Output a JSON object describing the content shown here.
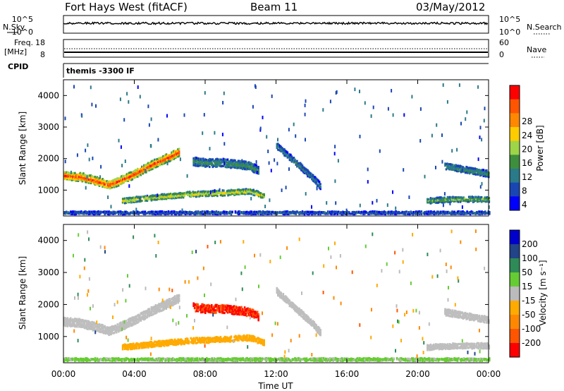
{
  "header": {
    "station": "Fort Hays West (fitACF)",
    "beam": "Beam 11",
    "date": "03/May/2012"
  },
  "noise_panel": {
    "left_label": "N.Sky",
    "left_ticks": [
      "10^5",
      "10^0"
    ],
    "right_label": "N.Search",
    "right_ticks": [
      "10^5",
      "10^0"
    ]
  },
  "freq_panel": {
    "left_label_1": "Freq.",
    "left_label_2": "[MHz]",
    "left_ticks": [
      "18",
      "8"
    ],
    "right_label": "Nave",
    "right_ticks": [
      "60",
      "0"
    ]
  },
  "cpid": {
    "label": "CPID",
    "value": "themis -3300 IF"
  },
  "colors": {
    "power_scale": [
      "#0000ff",
      "#1a46b4",
      "#2a7a8a",
      "#3d8f3d",
      "#9ed447",
      "#ffcc00",
      "#ff8800",
      "#ff5500",
      "#ff0000"
    ],
    "velocity_scale": [
      "#0000cc",
      "#224488",
      "#2e8b57",
      "#66cc33",
      "#bbbbbb",
      "#ffaa00",
      "#ff8800",
      "#ff5500",
      "#ff0000"
    ],
    "ground_scatter": "#bebebe"
  },
  "chart_data": [
    {
      "type": "heatmap",
      "title": "",
      "ylabel": "Slant Range [km]",
      "ylim": [
        180,
        4500
      ],
      "yticks": [
        "1000",
        "2000",
        "3000",
        "4000"
      ],
      "xlim": [
        0,
        24
      ],
      "colorbar_label": "Power [dB]",
      "colorbar_ticks": [
        "4",
        "8",
        "12",
        "16",
        "20",
        "24",
        "28"
      ],
      "colorbar_range": [
        0,
        30
      ],
      "features": [
        {
          "name": "main band",
          "t": [
            0,
            1,
            2,
            2.5,
            3,
            4,
            5,
            6,
            6.5
          ],
          "range": [
            1450,
            1400,
            1250,
            1150,
            1250,
            1500,
            1800,
            2050,
            2200
          ],
          "width": 260,
          "value": 24
        },
        {
          "name": "low arc",
          "t": [
            3.3,
            5,
            7,
            9,
            10.5,
            11.3
          ],
          "range": [
            650,
            750,
            850,
            900,
            950,
            800
          ],
          "width": 170,
          "value": 16
        },
        {
          "name": "upper band",
          "t": [
            7.3,
            8,
            9,
            10.5,
            11
          ],
          "range": [
            1900,
            1850,
            1850,
            1750,
            1600
          ],
          "width": 260,
          "value": 10
        },
        {
          "name": "descending arc",
          "t": [
            12,
            13,
            14,
            14.5
          ],
          "range": [
            2400,
            1900,
            1400,
            1100
          ],
          "width": 200,
          "value": 8
        },
        {
          "name": "late band",
          "t": [
            20.5,
            22,
            24
          ],
          "range": [
            650,
            700,
            700
          ],
          "width": 170,
          "value": 12
        },
        {
          "name": "late upper",
          "t": [
            21.5,
            23,
            24
          ],
          "range": [
            1750,
            1600,
            1500
          ],
          "width": 200,
          "value": 10
        },
        {
          "name": "near range",
          "t": [
            0,
            24
          ],
          "range": [
            270,
            270
          ],
          "width": 90,
          "value": 6
        }
      ]
    },
    {
      "type": "heatmap",
      "title": "",
      "ylabel": "Slant Range [km]",
      "ylim": [
        180,
        4500
      ],
      "yticks": [
        "1000",
        "2000",
        "3000",
        "4000"
      ],
      "xlim": [
        0,
        24
      ],
      "xlabel": "Time UT",
      "xticks": [
        "00:00",
        "04:00",
        "08:00",
        "12:00",
        "16:00",
        "20:00",
        "00:00"
      ],
      "colorbar_label": "Velocity [m s⁻¹]",
      "colorbar_ticks": [
        "200",
        "100",
        "50",
        "15",
        "-15",
        "-50",
        "-100",
        "-200"
      ],
      "colorbar_range": [
        -250,
        250
      ],
      "features": [
        {
          "name": "main band",
          "t": [
            0,
            1,
            2,
            2.5,
            3,
            4,
            5,
            6,
            6.5
          ],
          "range": [
            1450,
            1400,
            1250,
            1150,
            1250,
            1500,
            1800,
            2050,
            2200
          ],
          "width": 260,
          "value": "ground"
        },
        {
          "name": "low arc",
          "t": [
            3.3,
            5,
            7,
            9,
            10.5,
            11.3
          ],
          "range": [
            650,
            750,
            850,
            900,
            950,
            800
          ],
          "width": 170,
          "value": -60
        },
        {
          "name": "upper band",
          "t": [
            7.3,
            8,
            9,
            10.5,
            11
          ],
          "range": [
            1900,
            1850,
            1850,
            1750,
            1600
          ],
          "width": 260,
          "value": -200
        },
        {
          "name": "descending arc",
          "t": [
            12,
            13,
            14,
            14.5
          ],
          "range": [
            2400,
            1900,
            1400,
            1100
          ],
          "width": 200,
          "value": "ground"
        },
        {
          "name": "late band",
          "t": [
            20.5,
            22,
            24
          ],
          "range": [
            650,
            700,
            700
          ],
          "width": 170,
          "value": "ground"
        },
        {
          "name": "late upper",
          "t": [
            21.5,
            23,
            24
          ],
          "range": [
            1750,
            1600,
            1500
          ],
          "width": 200,
          "value": "ground"
        },
        {
          "name": "near range",
          "t": [
            0,
            24
          ],
          "range": [
            270,
            270
          ],
          "width": 90,
          "value": 40
        }
      ]
    }
  ]
}
